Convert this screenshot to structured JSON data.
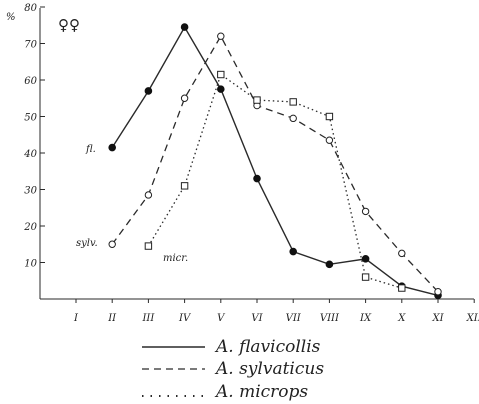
{
  "chart_data": {
    "type": "line",
    "categories": [
      "I",
      "II",
      "III",
      "IV",
      "V",
      "VI",
      "VII",
      "VIII",
      "IX",
      "X",
      "XI",
      "XII"
    ],
    "y_unit": "%",
    "yticks": [
      10,
      20,
      30,
      40,
      50,
      60,
      70,
      80
    ],
    "ylim": [
      0,
      80
    ],
    "symbol": "♀♀",
    "series": [
      {
        "name": "A. flavicollis",
        "label": "fl.",
        "dash": "solid",
        "marker": "filled-circle",
        "values": [
          null,
          41.5,
          57,
          74.5,
          57.5,
          33,
          13,
          9.5,
          11,
          3.5,
          1,
          null
        ]
      },
      {
        "name": "A. sylvaticus",
        "label": "sylv.",
        "dash": "dashed",
        "marker": "open-circle",
        "values": [
          null,
          15,
          28.5,
          55,
          72,
          53,
          49.5,
          43.5,
          24,
          12.5,
          2,
          null
        ]
      },
      {
        "name": "A. microps",
        "label": "micr.",
        "dash": "dotted",
        "marker": "open-square",
        "values": [
          null,
          null,
          14.5,
          31,
          61.5,
          54.5,
          54,
          50,
          6,
          3,
          null,
          null
        ]
      }
    ],
    "legend": {
      "position": "bottom",
      "entries": [
        {
          "sample": "————",
          "name": "A. flavicollis"
        },
        {
          "sample": "- - - - -",
          "name": "A. sylvaticus"
        },
        {
          "sample": ". . . . . .",
          "name": "A. microps"
        }
      ]
    }
  }
}
